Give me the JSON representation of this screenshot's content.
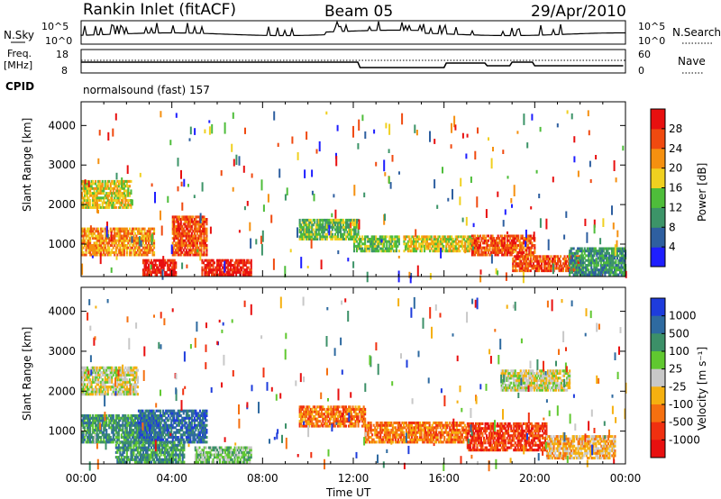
{
  "header": {
    "station": "Rankin Inlet (fitACF)",
    "beam": "Beam 05",
    "date": "29/Apr/2010"
  },
  "nsky_panel": {
    "left_label": "N.Sky",
    "right_label": "N.Search",
    "left_ticks": [
      "10^5",
      "10^0"
    ],
    "right_ticks": [
      "10^5",
      "10^0"
    ]
  },
  "freq_panel": {
    "left_label": "Freq.",
    "left_unit": "[MHz]",
    "right_label": "Nave",
    "left_ticks": [
      "18",
      "8"
    ],
    "right_ticks": [
      "60",
      "0"
    ],
    "cpid_label": "CPID",
    "cpid_value": "normalsound (fast)  157"
  },
  "x_axis": {
    "label": "Time UT",
    "ticks": [
      "00:00",
      "04:00",
      "08:00",
      "12:00",
      "16:00",
      "20:00",
      "00:00"
    ]
  },
  "chart_data": [
    {
      "type": "heatmap",
      "title": "Power",
      "xlabel": "Time UT",
      "ylabel": "Slant Range [km]",
      "x_range_hours": [
        0,
        24
      ],
      "ylim": [
        180,
        4600
      ],
      "y_ticks": [
        1000,
        2000,
        3000,
        4000
      ],
      "colorbar": {
        "label": "Power [dB]",
        "ticks": [
          "4",
          "8",
          "12",
          "16",
          "20",
          "24",
          "28"
        ],
        "colors": [
          "#1e1eff",
          "#2e5fa0",
          "#3c9468",
          "#4ebd3a",
          "#f0d020",
          "#f59010",
          "#f04a10",
          "#e81010"
        ]
      },
      "bands": [
        {
          "t0": 0.0,
          "t1": 2.2,
          "r0": 1900,
          "r1": 2600,
          "level": 4
        },
        {
          "t0": 0.0,
          "t1": 3.2,
          "r0": 700,
          "r1": 1400,
          "level": 5
        },
        {
          "t0": 2.7,
          "t1": 4.2,
          "r0": 200,
          "r1": 600,
          "level": 7
        },
        {
          "t0": 4.0,
          "t1": 5.5,
          "r0": 700,
          "r1": 1700,
          "level": 6
        },
        {
          "t0": 5.3,
          "t1": 7.5,
          "r0": 200,
          "r1": 600,
          "level": 7
        },
        {
          "t0": 9.6,
          "t1": 12.2,
          "r0": 1100,
          "r1": 1600,
          "level": 3
        },
        {
          "t0": 12.0,
          "t1": 14.0,
          "r0": 800,
          "r1": 1200,
          "level": 3
        },
        {
          "t0": 14.2,
          "t1": 17.5,
          "r0": 800,
          "r1": 1200,
          "level": 4
        },
        {
          "t0": 17.2,
          "t1": 20.0,
          "r0": 700,
          "r1": 1200,
          "level": 6
        },
        {
          "t0": 19.0,
          "t1": 22.0,
          "r0": 300,
          "r1": 700,
          "level": 6
        },
        {
          "t0": 21.5,
          "t1": 24.0,
          "r0": 200,
          "r1": 900,
          "level": 2
        }
      ]
    },
    {
      "type": "heatmap",
      "title": "Velocity",
      "xlabel": "Time UT",
      "ylabel": "Slant Range [km]",
      "x_range_hours": [
        0,
        24
      ],
      "ylim": [
        180,
        4600
      ],
      "y_ticks": [
        1000,
        2000,
        3000,
        4000
      ],
      "colorbar": {
        "label": "Velocity [m s⁻¹]",
        "ticks": [
          "1000",
          "500",
          "100",
          "25",
          "-25",
          "-100",
          "-500",
          "-1000"
        ],
        "colors": [
          "#1e3cdc",
          "#2e6aa0",
          "#3c9068",
          "#60c830",
          "#c8c8c8",
          "#f5b010",
          "#f57010",
          "#f03010",
          "#e81010"
        ]
      },
      "bands": [
        {
          "t0": 0.0,
          "t1": 2.5,
          "r0": 1900,
          "r1": 2600,
          "level": 4
        },
        {
          "t0": 0.0,
          "t1": 3.5,
          "r0": 700,
          "r1": 1400,
          "level": 2
        },
        {
          "t0": 2.5,
          "t1": 5.5,
          "r0": 700,
          "r1": 1500,
          "level": 1
        },
        {
          "t0": 1.5,
          "t1": 4.5,
          "r0": 200,
          "r1": 700,
          "level": 2
        },
        {
          "t0": 5.0,
          "t1": 7.5,
          "r0": 200,
          "r1": 600,
          "level": 3
        },
        {
          "t0": 9.6,
          "t1": 12.5,
          "r0": 1100,
          "r1": 1600,
          "level": 6
        },
        {
          "t0": 12.5,
          "t1": 17.0,
          "r0": 700,
          "r1": 1200,
          "level": 6
        },
        {
          "t0": 17.0,
          "t1": 20.5,
          "r0": 500,
          "r1": 1200,
          "level": 7
        },
        {
          "t0": 20.5,
          "t1": 23.5,
          "r0": 300,
          "r1": 900,
          "level": 5
        },
        {
          "t0": 18.5,
          "t1": 21.5,
          "r0": 2000,
          "r1": 2500,
          "level": 4
        }
      ]
    }
  ]
}
